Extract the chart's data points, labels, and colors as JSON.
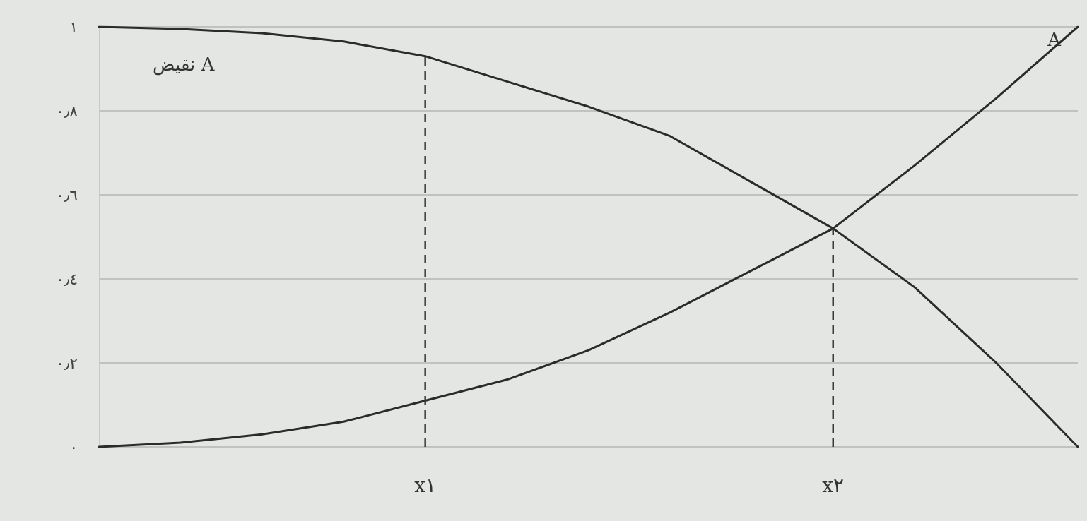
{
  "chart_data": {
    "type": "line",
    "categories": [
      null,
      null,
      null,
      null,
      "x١",
      null,
      null,
      null,
      null,
      "x٢",
      null,
      null,
      null
    ],
    "series": [
      {
        "name": "A",
        "color": "#2b2b2b",
        "values": [
          0.0,
          0.01,
          0.03,
          0.06,
          0.11,
          0.16,
          0.23,
          0.32,
          0.42,
          0.52,
          0.67,
          0.83,
          1.0
        ]
      },
      {
        "name": "نقیض A",
        "color": "#2b2b2b",
        "values": [
          1.0,
          0.995,
          0.985,
          0.965,
          0.93,
          0.87,
          0.81,
          0.74,
          0.63,
          0.52,
          0.38,
          0.2,
          0.0
        ]
      }
    ],
    "ylim": [
      0,
      1
    ],
    "yticks": [
      {
        "value": 0,
        "label": "٠"
      },
      {
        "value": 0.2,
        "label": "٠٫٢"
      },
      {
        "value": 0.4,
        "label": "٠٫٤"
      },
      {
        "value": 0.6,
        "label": "٠٫٦"
      },
      {
        "value": 0.8,
        "label": "٠٫٨"
      },
      {
        "value": 1,
        "label": "١"
      }
    ],
    "ref_lines": [
      {
        "axis": "x",
        "value": "x١",
        "line_style": "dashed",
        "color": "#3a3a3a"
      },
      {
        "axis": "x",
        "value": "x٢",
        "line_style": "dashed",
        "color": "#3a3a3a"
      }
    ],
    "grid": "y",
    "marker": "none",
    "line_style": "solid",
    "legend": false
  }
}
